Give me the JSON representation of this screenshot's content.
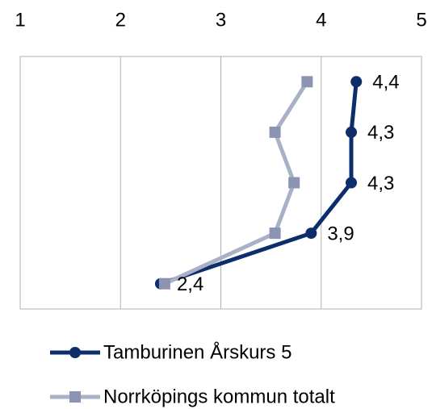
{
  "chart_data": {
    "type": "line",
    "orientation": "horizontal",
    "categories": [
      null,
      null,
      null,
      null,
      null
    ],
    "xlim": [
      1,
      5
    ],
    "xticks": [
      1,
      2,
      3,
      4,
      5
    ],
    "grid": true,
    "legend": "bottom",
    "series": [
      {
        "name": "Tamburinen Årskurs 5",
        "color": "#0d2d6b",
        "marker": "circle",
        "values": [
          4.35,
          4.3,
          4.3,
          3.9,
          2.4
        ],
        "value_labels": [
          "4,4",
          "4,3",
          "4,3",
          "3,9",
          "2,4"
        ]
      },
      {
        "name": "Norrköpings kommun totalt",
        "color": "#a9b1c9",
        "marker_color": "#8b95b3",
        "marker": "square",
        "values": [
          3.86,
          3.54,
          3.73,
          3.54,
          2.44
        ]
      }
    ]
  }
}
